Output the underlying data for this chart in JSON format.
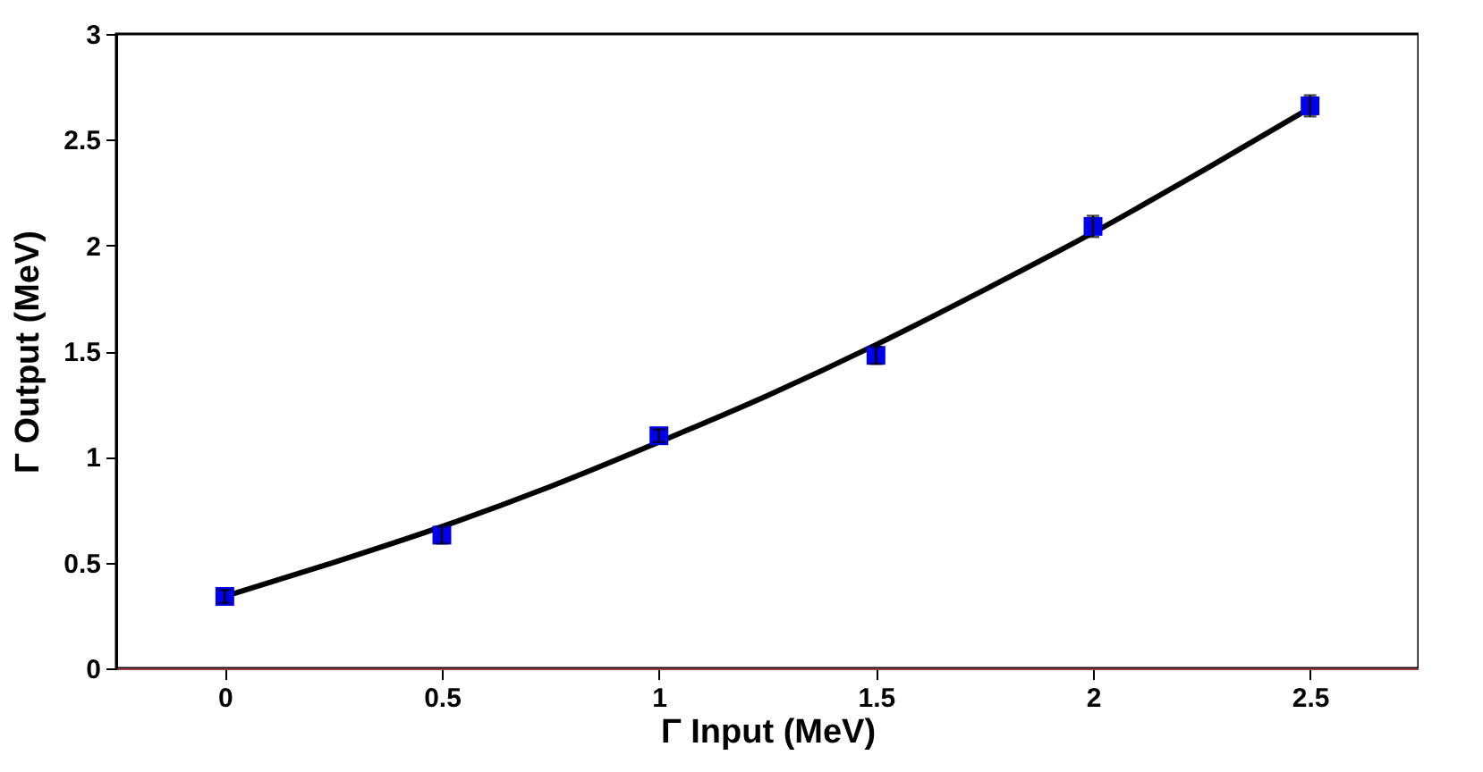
{
  "chart_data": {
    "type": "scatter",
    "xlabel": "Γ Input (MeV)",
    "ylabel": "Γ Output (MeV)",
    "xlim": [
      -0.25,
      2.75
    ],
    "ylim": [
      0,
      3
    ],
    "xticks": [
      0,
      0.5,
      1,
      1.5,
      2,
      2.5
    ],
    "yticks": [
      0,
      0.5,
      1,
      1.5,
      2,
      2.5,
      3
    ],
    "grid": false,
    "marker": "square",
    "series": [
      {
        "color": "#0000ee",
        "x": [
          0,
          0.5,
          1,
          1.5,
          2,
          2.5
        ],
        "values": [
          0.34,
          0.63,
          1.1,
          1.48,
          2.09,
          2.66
        ],
        "errors": [
          0.03,
          0.04,
          0.03,
          0.04,
          0.05,
          0.05
        ]
      },
      {
        "type": "line",
        "color": "#000000",
        "marker": "none",
        "x": [
          0,
          0.25,
          0.5,
          0.75,
          1,
          1.25,
          1.5,
          1.75,
          2,
          2.25,
          2.5
        ],
        "values": [
          0.34,
          0.5,
          0.67,
          0.86,
          1.07,
          1.29,
          1.53,
          1.79,
          2.06,
          2.35,
          2.65
        ]
      }
    ]
  }
}
